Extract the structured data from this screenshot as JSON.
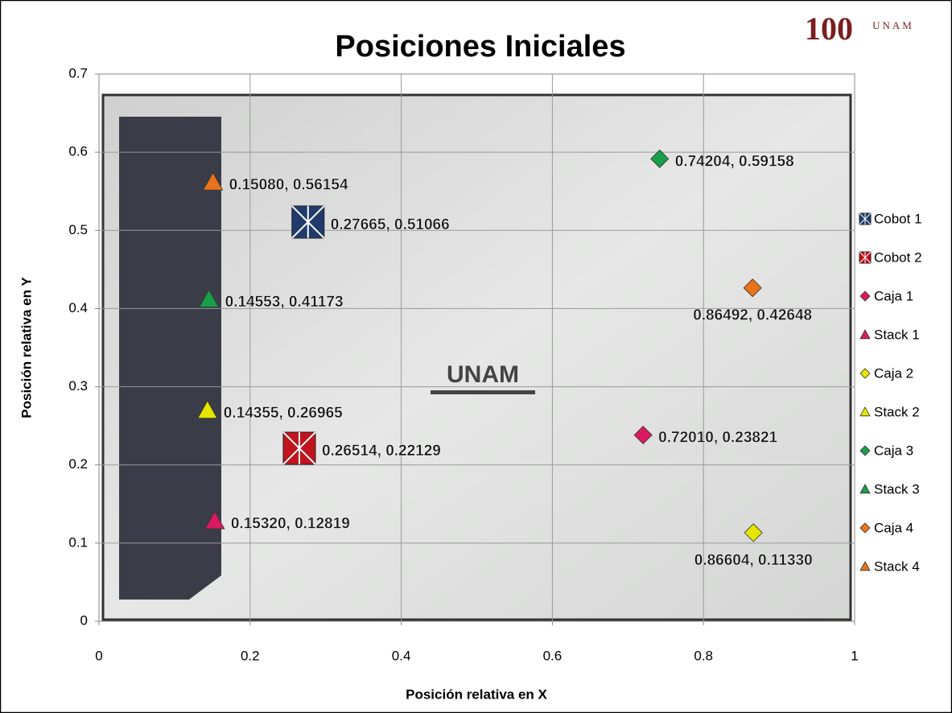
{
  "chart_data": {
    "type": "scatter",
    "title": "Posiciones Iniciales",
    "x_label": "Posición relativa en X",
    "y_label": "Posición relativa en Y",
    "photo_text": "UNAM",
    "logo": {
      "number": "100",
      "text": "UNAM"
    },
    "xlim": [
      0,
      1
    ],
    "xticks": [
      0,
      0.2,
      0.4,
      0.6,
      0.8,
      1
    ],
    "ylim": [
      0,
      0.7
    ],
    "yticks": [
      0,
      0.1,
      0.2,
      0.3,
      0.4,
      0.5,
      0.6,
      0.7
    ],
    "grid": true,
    "legend": "right",
    "series": [
      {
        "name": "Cobot 1",
        "color": "#1f3a6b",
        "marker": "square",
        "x": [
          0.27665
        ],
        "values": [
          0.51066
        ],
        "value_labels": [
          "0.27665, 0.51066"
        ]
      },
      {
        "name": "Cobot 2",
        "color": "#c0141e",
        "marker": "square",
        "x": [
          0.26514
        ],
        "values": [
          0.22129
        ],
        "value_labels": [
          "0.26514, 0.22129"
        ]
      },
      {
        "name": "Caja 1",
        "color": "#d81b60",
        "marker": "diamond",
        "x": [
          0.7201
        ],
        "values": [
          0.23821
        ],
        "value_labels": [
          "0.72010, 0.23821"
        ]
      },
      {
        "name": "Stack 1",
        "color": "#d81b60",
        "marker": "triangle",
        "x": [
          0.1532
        ],
        "values": [
          0.12819
        ],
        "value_labels": [
          "0.15320, 0.12819"
        ]
      },
      {
        "name": "Caja 2",
        "color": "#e6e600",
        "marker": "diamond",
        "x": [
          0.86604
        ],
        "values": [
          0.1133
        ],
        "value_labels": [
          "0.86604, 0.11330"
        ]
      },
      {
        "name": "Stack 2",
        "color": "#e6e600",
        "marker": "triangle",
        "x": [
          0.14355
        ],
        "values": [
          0.26965
        ],
        "value_labels": [
          "0.14355, 0.26965"
        ]
      },
      {
        "name": "Caja 3",
        "color": "#1a9e4a",
        "marker": "diamond",
        "x": [
          0.74204
        ],
        "values": [
          0.59158
        ],
        "value_labels": [
          "0.74204, 0.59158"
        ]
      },
      {
        "name": "Stack 3",
        "color": "#1a9e4a",
        "marker": "triangle",
        "x": [
          0.14553
        ],
        "values": [
          0.41173
        ],
        "value_labels": [
          "0.14553, 0.41173"
        ]
      },
      {
        "name": "Caja 4",
        "color": "#e8731a",
        "marker": "diamond",
        "x": [
          0.86492
        ],
        "values": [
          0.42648
        ],
        "value_labels": [
          "0.86492, 0.42648"
        ]
      },
      {
        "name": "Stack 4",
        "color": "#e8731a",
        "marker": "triangle",
        "x": [
          0.1508
        ],
        "values": [
          0.56154
        ],
        "value_labels": [
          "0.15080, 0.56154"
        ]
      }
    ]
  }
}
